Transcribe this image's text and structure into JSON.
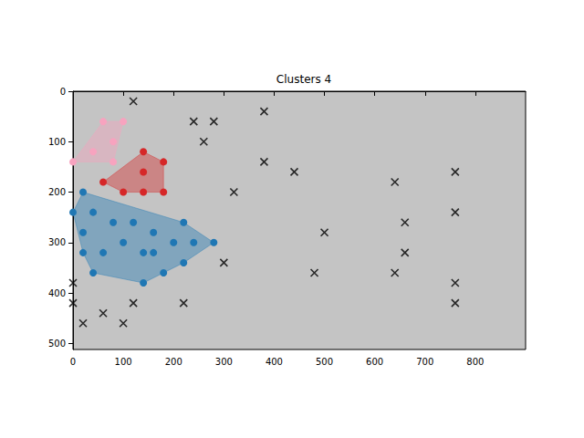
{
  "chart_data": {
    "type": "scatter",
    "title": "Clusters 4",
    "xlim": [
      0,
      900
    ],
    "xticks": [
      0,
      100,
      200,
      300,
      400,
      500,
      600,
      700,
      800
    ],
    "ylim": [
      512,
      0
    ],
    "yticks": [
      0,
      100,
      200,
      300,
      400,
      500
    ],
    "series": [
      {
        "type": "cluster",
        "color": "#f7a3bf",
        "marker": "circle",
        "x": [
          0,
          40,
          60,
          100,
          80,
          80
        ],
        "y": [
          140,
          120,
          60,
          60,
          100,
          140
        ]
      },
      {
        "type": "cluster",
        "color": "#d62728",
        "marker": "circle",
        "x": [
          60,
          100,
          140,
          140,
          140,
          180,
          180
        ],
        "y": [
          180,
          200,
          120,
          160,
          200,
          140,
          200
        ]
      },
      {
        "type": "cluster",
        "color": "#1f77b4",
        "marker": "circle",
        "x": [
          0,
          20,
          20,
          20,
          40,
          40,
          60,
          80,
          100,
          120,
          140,
          140,
          160,
          160,
          180,
          200,
          220,
          220,
          240,
          280
        ],
        "y": [
          240,
          200,
          280,
          320,
          240,
          360,
          320,
          260,
          300,
          260,
          320,
          380,
          280,
          320,
          360,
          300,
          260,
          340,
          300,
          300
        ]
      },
      {
        "type": "scatter",
        "color": "#000000",
        "marker": "x",
        "x": [
          120,
          240,
          280,
          260,
          380,
          380,
          320,
          440,
          500,
          480,
          300,
          220,
          120,
          100,
          60,
          20,
          0,
          0,
          640,
          660,
          660,
          640,
          760,
          760,
          760,
          760
        ],
        "y": [
          20,
          60,
          60,
          100,
          40,
          140,
          200,
          160,
          280,
          360,
          340,
          420,
          420,
          460,
          440,
          460,
          380,
          420,
          180,
          260,
          320,
          360,
          160,
          240,
          380,
          420
        ]
      }
    ]
  }
}
